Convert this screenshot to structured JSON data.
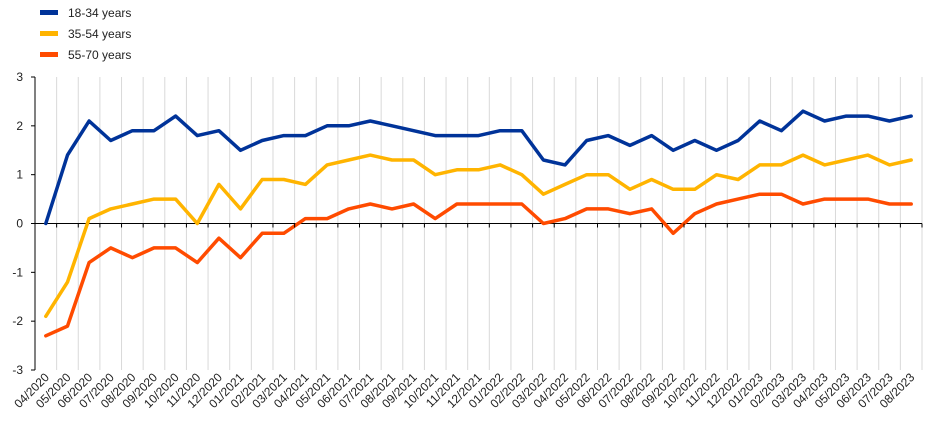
{
  "chart_data": {
    "type": "line",
    "title": "",
    "xlabel": "",
    "ylabel": "",
    "ylim": [
      -3,
      3
    ],
    "yticks": [
      3,
      2,
      1,
      0,
      -1,
      -2,
      -3
    ],
    "grid": "vertical lines on",
    "legend_position": "top-left",
    "categories": [
      "04/2020",
      "05/2020",
      "06/2020",
      "07/2020",
      "08/2020",
      "09/2020",
      "10/2020",
      "11/2020",
      "12/2020",
      "01/2021",
      "02/2021",
      "03/2021",
      "04/2021",
      "05/2021",
      "06/2021",
      "07/2021",
      "08/2021",
      "09/2021",
      "10/2021",
      "11/2021",
      "12/2021",
      "01/2022",
      "02/2022",
      "03/2022",
      "04/2022",
      "05/2022",
      "06/2022",
      "07/2022",
      "08/2022",
      "09/2022",
      "10/2022",
      "11/2022",
      "12/2022",
      "01/2023",
      "02/2023",
      "03/2023",
      "04/2023",
      "05/2023",
      "06/2023",
      "07/2023",
      "08/2023"
    ],
    "series": [
      {
        "name": "18-34 years",
        "color": "#003399",
        "values": [
          0,
          1.4,
          2.1,
          1.7,
          1.9,
          1.9,
          2.2,
          1.8,
          1.9,
          1.5,
          1.7,
          1.8,
          1.8,
          2.0,
          2.0,
          2.1,
          2.0,
          1.9,
          1.8,
          1.8,
          1.8,
          1.9,
          1.9,
          1.3,
          1.2,
          1.7,
          1.8,
          1.6,
          1.8,
          1.5,
          1.7,
          1.5,
          1.7,
          2.1,
          1.9,
          2.3,
          2.1,
          2.2,
          2.2,
          2.1,
          2.2
        ]
      },
      {
        "name": "35-54 years",
        "color": "#FFB400",
        "values": [
          -1.9,
          -1.2,
          0.1,
          0.3,
          0.4,
          0.5,
          0.5,
          0.0,
          0.8,
          0.3,
          0.9,
          0.9,
          0.8,
          1.2,
          1.3,
          1.4,
          1.3,
          1.3,
          1.0,
          1.1,
          1.1,
          1.2,
          1.0,
          0.6,
          0.8,
          1.0,
          1.0,
          0.7,
          0.9,
          0.7,
          0.7,
          1.0,
          0.9,
          1.2,
          1.2,
          1.4,
          1.2,
          1.3,
          1.4,
          1.2,
          1.3
        ]
      },
      {
        "name": "55-70 years",
        "color": "#FF4B00",
        "values": [
          -2.3,
          -2.1,
          -0.8,
          -0.5,
          -0.7,
          -0.5,
          -0.5,
          -0.8,
          -0.3,
          -0.7,
          -0.2,
          -0.2,
          0.1,
          0.1,
          0.3,
          0.4,
          0.3,
          0.4,
          0.1,
          0.4,
          0.4,
          0.4,
          0.4,
          0.0,
          0.1,
          0.3,
          0.3,
          0.2,
          0.3,
          -0.2,
          0.2,
          0.4,
          0.5,
          0.6,
          0.6,
          0.4,
          0.5,
          0.5,
          0.5,
          0.4,
          0.4
        ]
      }
    ]
  }
}
